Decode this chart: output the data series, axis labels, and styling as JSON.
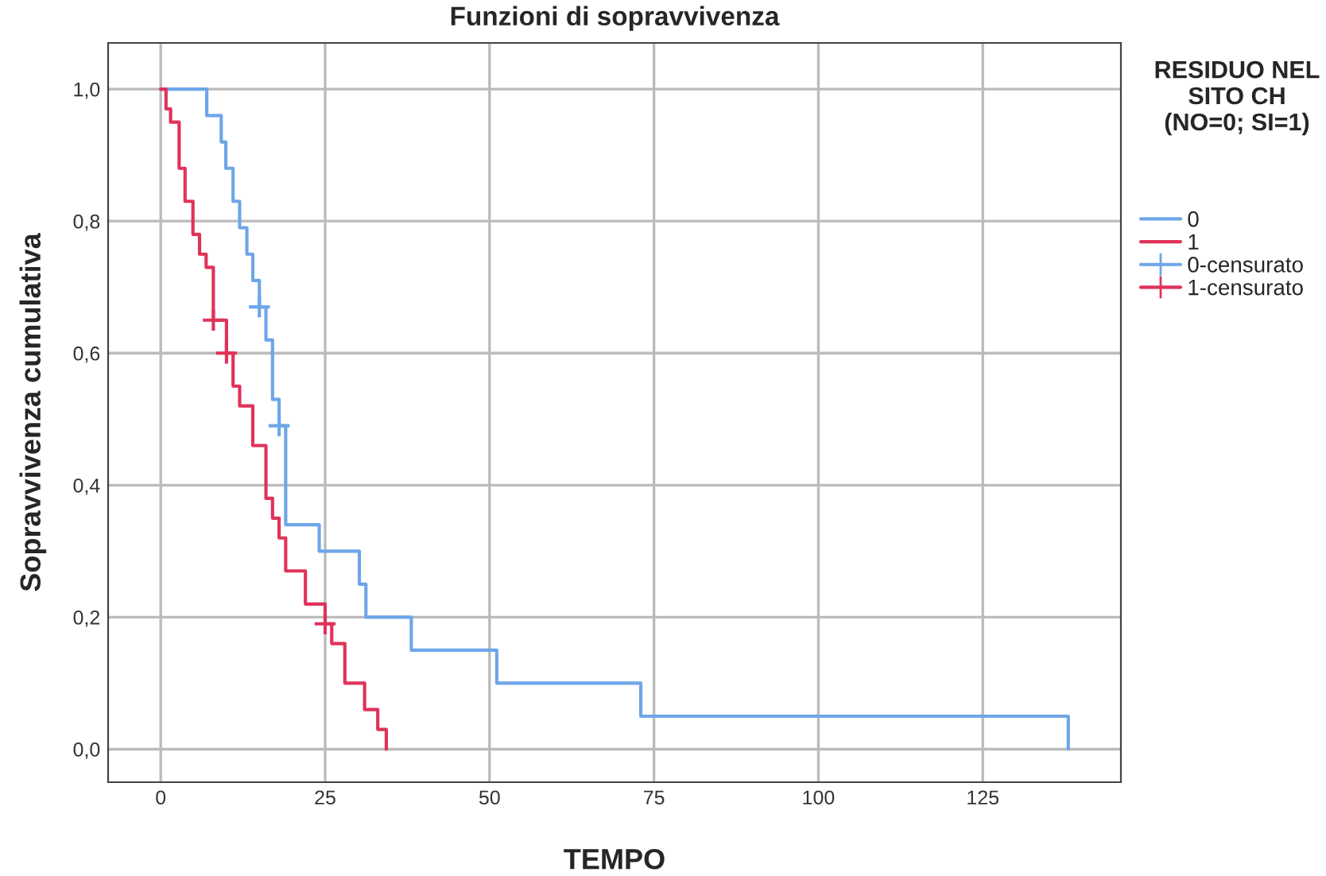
{
  "chart_data": {
    "type": "step",
    "title": "Funzioni di sopravvivenza",
    "xlabel": "TEMPO",
    "ylabel": "Sopravvivenza cumulativa",
    "legend_title": "RESIDUO NEL SITO CH (NO=0; SI=1)",
    "series": [
      {
        "name": "0",
        "color": "#6ea6e8",
        "x": [
          0,
          7,
          9.2,
          9.9,
          11,
          12,
          13.1,
          14,
          15,
          16,
          17,
          18,
          19,
          24.1,
          30.2,
          31.2,
          38.1,
          51.1,
          73,
          138
        ],
        "values": [
          1,
          0.96,
          0.92,
          0.88,
          0.83,
          0.79,
          0.75,
          0.71,
          0.67,
          0.62,
          0.53,
          0.49,
          0.34,
          0.3,
          0.25,
          0.2,
          0.15,
          0.1,
          0.05,
          0
        ]
      },
      {
        "name": "1",
        "color": "#e0335a",
        "x": [
          0,
          0.8,
          1.5,
          2.8,
          3.7,
          4.9,
          5.9,
          6.9,
          8,
          10,
          11,
          12,
          14,
          16,
          17,
          18,
          19,
          22,
          25,
          26,
          28,
          31,
          33,
          34.3
        ],
        "values": [
          1,
          0.97,
          0.95,
          0.88,
          0.83,
          0.78,
          0.75,
          0.73,
          0.65,
          0.6,
          0.55,
          0.52,
          0.46,
          0.38,
          0.35,
          0.32,
          0.27,
          0.22,
          0.19,
          0.16,
          0.1,
          0.06,
          0.03,
          0
        ]
      },
      {
        "name": "0-censurato",
        "type": "scatter",
        "marker": "cross",
        "color": "#6ea6e8",
        "x": [
          15,
          18
        ],
        "values": [
          0.67,
          0.49
        ]
      },
      {
        "name": "1-censurato",
        "type": "scatter",
        "marker": "cross",
        "color": "#e0335a",
        "x": [
          8,
          10,
          25
        ],
        "values": [
          0.65,
          0.6,
          0.19
        ]
      }
    ],
    "xlim": [
      -8,
      146
    ],
    "ylim": [
      -0.05,
      1.07
    ],
    "xticks": [
      0,
      25,
      50,
      75,
      100,
      125
    ],
    "yticks": [
      {
        "value": 0,
        "label": "0,0"
      },
      {
        "value": 0.2,
        "label": "0,2"
      },
      {
        "value": 0.4,
        "label": "0,4"
      },
      {
        "value": 0.6,
        "label": "0,6"
      },
      {
        "value": 0.8,
        "label": "0,8"
      },
      {
        "value": 1,
        "label": "1,0"
      }
    ],
    "grid": true,
    "legend": "top right"
  }
}
